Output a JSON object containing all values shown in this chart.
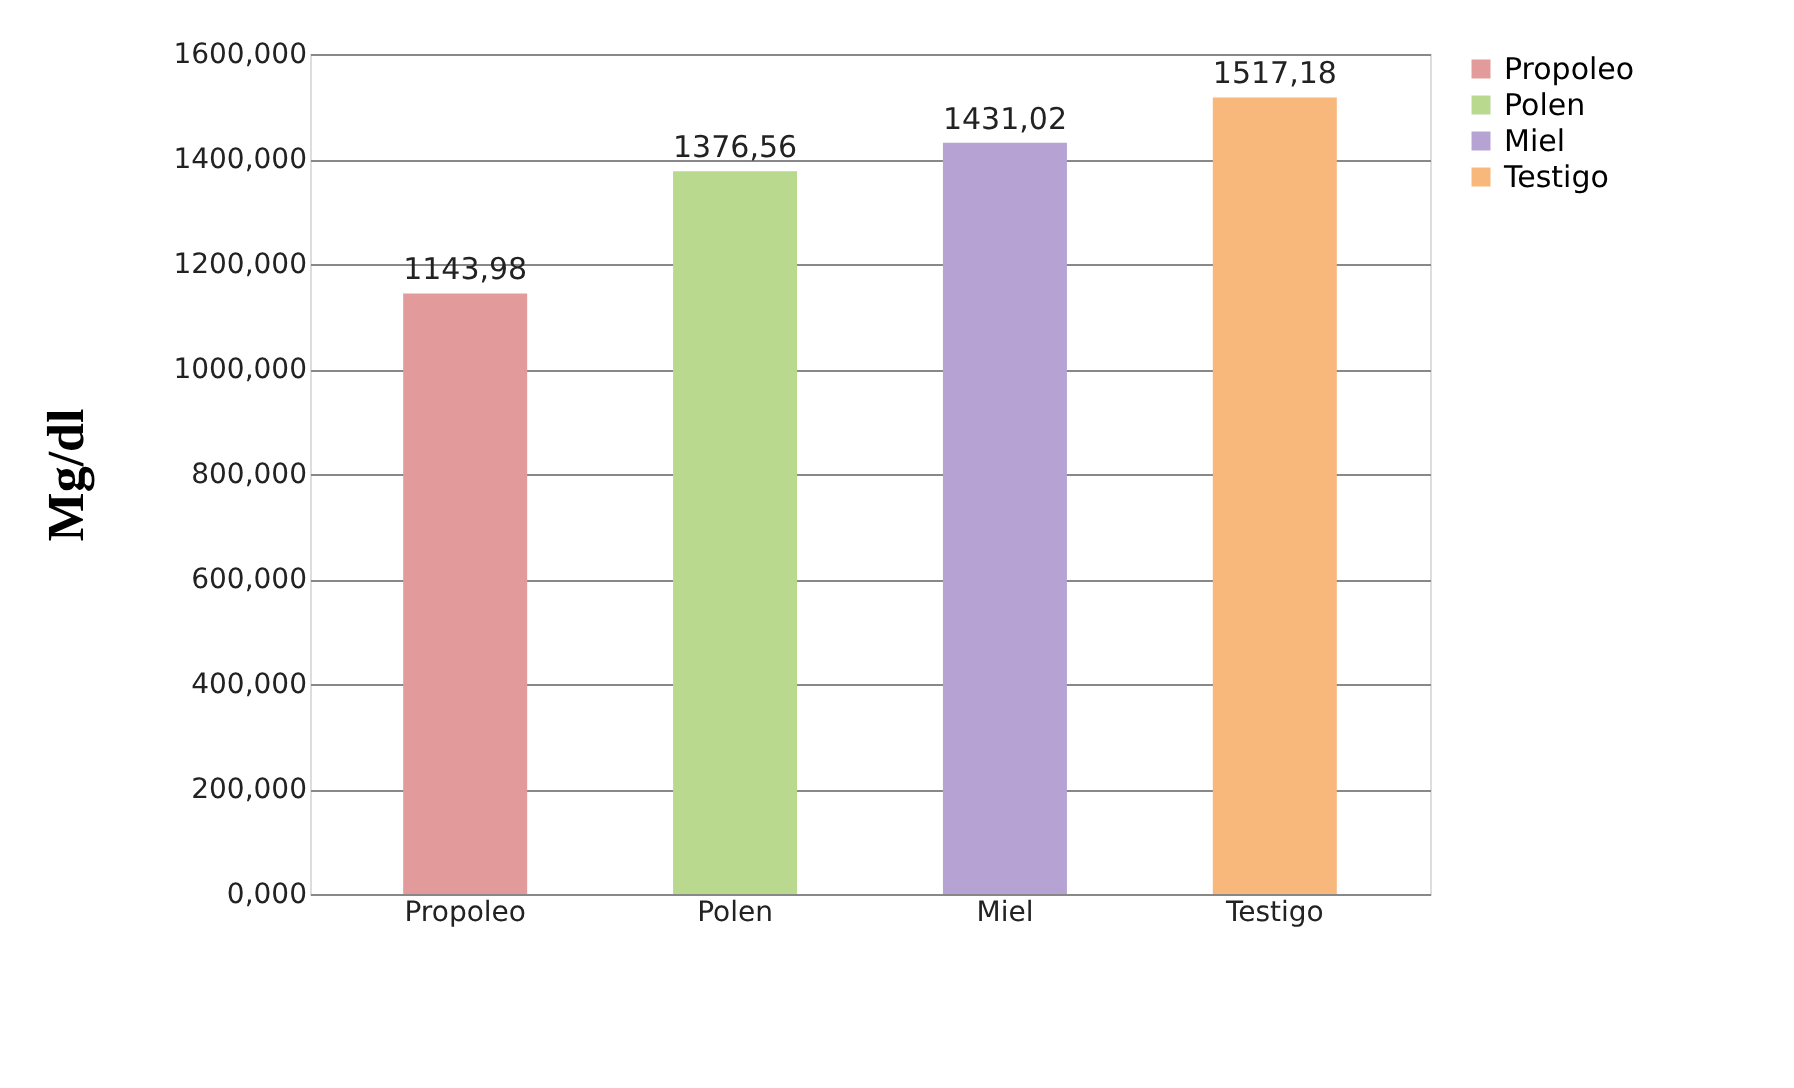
{
  "chart_data": {
    "type": "bar",
    "ylabel": "Mg/dl",
    "categories": [
      "Propoleo",
      "Polen",
      "Miel",
      "Testigo"
    ],
    "series": [
      {
        "name": "Propoleo",
        "color": "#e39a9a",
        "values": [
          1143.98,
          null,
          null,
          null
        ],
        "value_labels": [
          "1143,98",
          null,
          null,
          null
        ]
      },
      {
        "name": "Polen",
        "color": "#b9d98e",
        "values": [
          null,
          1376.56,
          null,
          null
        ],
        "value_labels": [
          null,
          "1376,56",
          null,
          null
        ]
      },
      {
        "name": "Miel",
        "color": "#b7a3d3",
        "values": [
          null,
          null,
          1431.02,
          null
        ],
        "value_labels": [
          null,
          null,
          "1431,02",
          null
        ]
      },
      {
        "name": "Testigo",
        "color": "#f8b87c",
        "values": [
          null,
          null,
          null,
          1517.18
        ],
        "value_labels": [
          null,
          null,
          null,
          "1517,18"
        ]
      }
    ],
    "ylim": [
      0,
      1600
    ],
    "yticks": [
      {
        "value": 0,
        "label": "0,000"
      },
      {
        "value": 200,
        "label": "200,000"
      },
      {
        "value": 400,
        "label": "400,000"
      },
      {
        "value": 600,
        "label": "600,000"
      },
      {
        "value": 800,
        "label": "800,000"
      },
      {
        "value": 1000,
        "label": "1000,000"
      },
      {
        "value": 1200,
        "label": "1200,000"
      },
      {
        "value": 1400,
        "label": "1400,000"
      },
      {
        "value": 1600,
        "label": "1600,000"
      }
    ],
    "grid": "y",
    "legend": "right"
  }
}
